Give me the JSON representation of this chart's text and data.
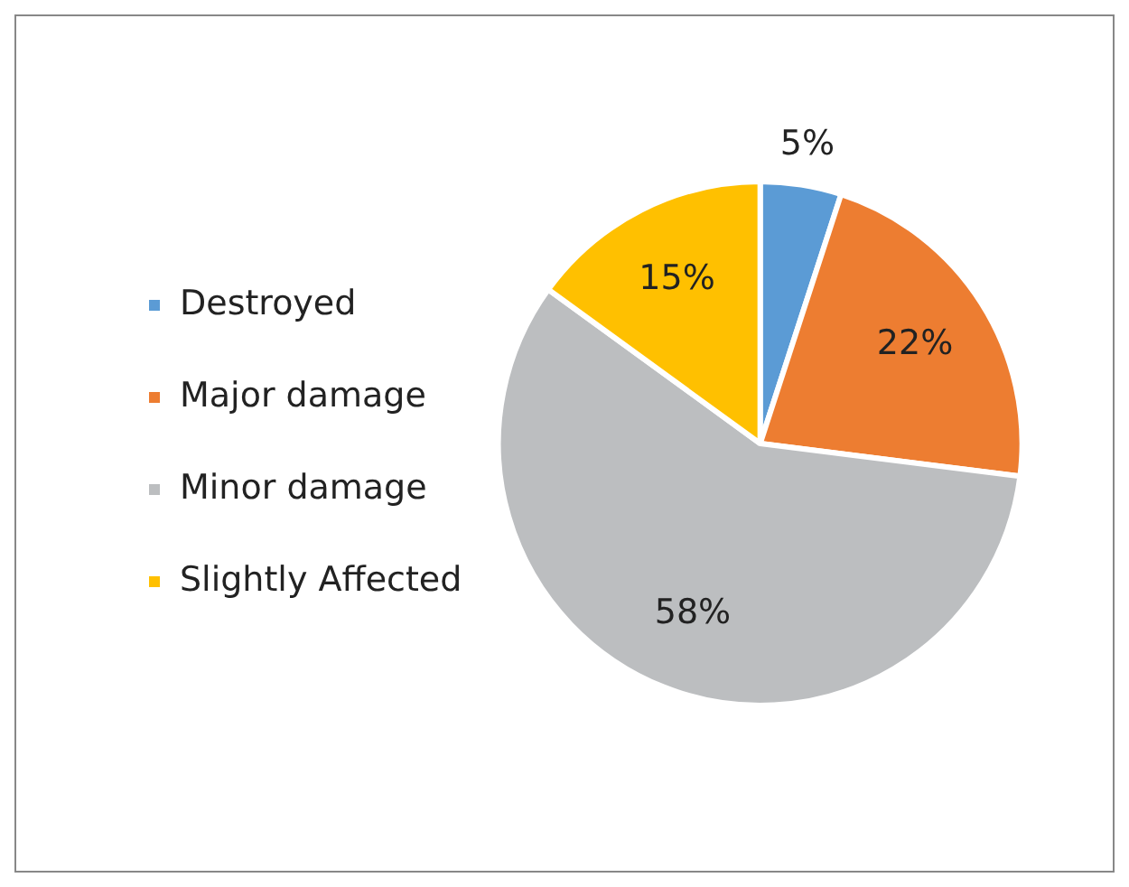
{
  "chart_data": {
    "type": "pie",
    "categories": [
      "Destroyed",
      "Major damage",
      "Minor damage",
      "Slightly Affected"
    ],
    "values": [
      5,
      22,
      58,
      15
    ],
    "colors": [
      "#5b9bd5",
      "#ed7d31",
      "#bcbec0",
      "#ffc000"
    ],
    "value_labels": [
      "5%",
      "22%",
      "58%",
      "15%"
    ],
    "legend": "left"
  }
}
